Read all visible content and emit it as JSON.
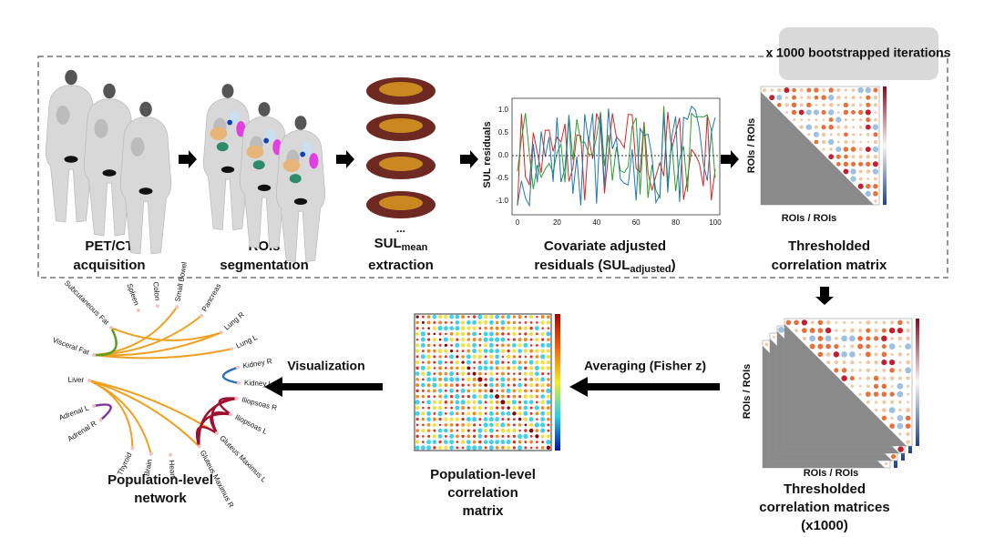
{
  "banner": "x 1000 bootstrapped iterations",
  "pet_ct": {
    "caption": [
      "PET/CT",
      "acquisition"
    ]
  },
  "rois": {
    "caption": [
      "ROIs",
      "segmentation"
    ]
  },
  "sul_mean": {
    "ellipsis": "...",
    "caption_base": "SUL",
    "caption_sub": "mean",
    "caption_line2": "extraction"
  },
  "residuals": {
    "y_label": "SUL residuals",
    "y_ticks": [
      "1.0",
      "0.5",
      "0.0",
      "-0.5",
      "-1.0"
    ],
    "x_ticks": [
      0,
      20,
      40,
      60,
      80,
      100
    ],
    "caption_line1": "Covariate adjusted",
    "caption_line2_pre": "residuals (SUL",
    "caption_line2_sub": "adjusted",
    "caption_line2_post": ")"
  },
  "thresholded_matrix": {
    "axis_label_x": "ROIs / ROIs",
    "axis_label_y": "ROIs / ROIs",
    "caption": [
      "Thresholded",
      "correlation matrix"
    ]
  },
  "bootstrapped_matrices": {
    "axis_label_x": "ROIs / ROIs",
    "axis_label_y": "ROIs / ROIs",
    "caption": [
      "Thresholded",
      "correlation matrices",
      "(x1000)"
    ]
  },
  "averaging": {
    "arrow_label": "Averaging (Fisher z)"
  },
  "population_matrix": {
    "caption": [
      "Population-level",
      "correlation",
      "matrix"
    ]
  },
  "visualization": {
    "arrow_label": "Visualization"
  },
  "network": {
    "nodes": [
      "Small Bowel",
      "Colon",
      "Pancreas",
      "Spleen",
      "Subcutaneous Fat",
      "Lung R",
      "Lung L",
      "Visceral Fat",
      "Kidney R",
      "Kidney L",
      "Liver",
      "Iliopsoas R",
      "Adrenal L",
      "Iliopsoas L",
      "Adrenal R",
      "Gluteus Maximus L",
      "Gluteus Maximus R",
      "Thyroid",
      "Brain",
      "Heart"
    ],
    "caption": [
      "Population-level",
      "network"
    ]
  }
}
